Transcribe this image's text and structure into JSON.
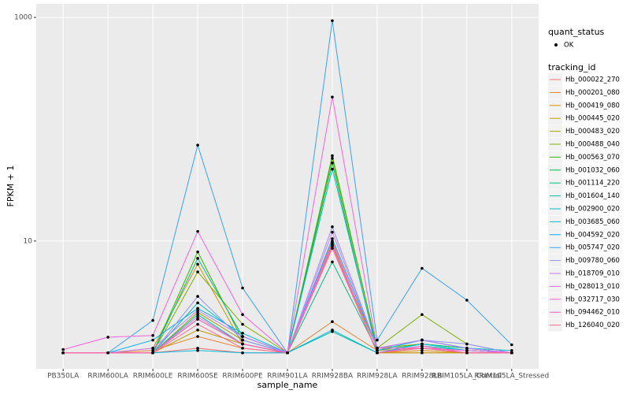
{
  "chart_data": {
    "type": "line",
    "x_label": "sample_name",
    "y_label": "FPKM + 1",
    "yscale": "log",
    "ylim": [
      0.72,
      1320
    ],
    "yticks": [
      10,
      1000
    ],
    "grid": true,
    "categories": [
      "PB350LA",
      "RRIM600LA",
      "RRIM600LE",
      "RRIM600SE",
      "RRIM600PE",
      "RRIM901LA",
      "RRIM928BA",
      "RRIM928LA",
      "RRIM928LB",
      "RRIM105LA_Control",
      "RRIM105LA_Stressed"
    ],
    "point_legend_title": "quant_status",
    "point_legend_label": "OK",
    "legend_title": "tracking_id",
    "series": [
      {
        "name": "Hb_000022_270",
        "color": "#F8766D",
        "values": [
          1,
          1,
          1,
          1.1,
          1,
          1,
          9.5,
          1,
          1,
          1,
          1
        ]
      },
      {
        "name": "Hb_000201_080",
        "color": "#EA8331",
        "values": [
          1,
          1,
          1.05,
          1.4,
          1.1,
          1,
          1.9,
          1.05,
          1.1,
          1.05,
          1
        ]
      },
      {
        "name": "Hb_000419_080",
        "color": "#D89000",
        "values": [
          1,
          1,
          1.1,
          6.2,
          1.2,
          1,
          9,
          1,
          1.05,
          1,
          1
        ]
      },
      {
        "name": "Hb_000445_020",
        "color": "#C09B00",
        "values": [
          1,
          1,
          1,
          1.6,
          1.2,
          1,
          10,
          1,
          1,
          1,
          1
        ]
      },
      {
        "name": "Hb_000483_020",
        "color": "#A3A500",
        "values": [
          1,
          1,
          1,
          2.3,
          1.3,
          1,
          9.2,
          1.1,
          1.2,
          1.1,
          1
        ]
      },
      {
        "name": "Hb_000488_040",
        "color": "#7CAE00",
        "values": [
          1,
          1,
          1,
          5.3,
          1.8,
          1,
          55,
          1.1,
          2.2,
          1.2,
          1
        ]
      },
      {
        "name": "Hb_000563_070",
        "color": "#39B600",
        "values": [
          1,
          1,
          1,
          8,
          1.3,
          1,
          58,
          1.1,
          1.3,
          1.1,
          1
        ]
      },
      {
        "name": "Hb_001032_060",
        "color": "#00BB4E",
        "values": [
          1,
          1,
          1,
          2,
          1.2,
          1,
          50,
          1,
          1.1,
          1,
          1
        ]
      },
      {
        "name": "Hb_001114_220",
        "color": "#00BF7D",
        "values": [
          1,
          1,
          1,
          7,
          1.4,
          1,
          6.5,
          1.05,
          1.2,
          1.1,
          1
        ]
      },
      {
        "name": "Hb_001604_140",
        "color": "#00C1A3",
        "values": [
          1,
          1,
          1,
          2.2,
          1.2,
          1,
          1.55,
          1,
          1.15,
          1.05,
          1
        ]
      },
      {
        "name": "Hb_002900_020",
        "color": "#00BFC4",
        "values": [
          1,
          1,
          1,
          2.8,
          1.4,
          1,
          44,
          1.05,
          1.3,
          1.1,
          1.05
        ]
      },
      {
        "name": "Hb_003685_060",
        "color": "#00BAE0",
        "values": [
          1,
          1,
          1,
          1.05,
          1,
          1,
          1.6,
          1,
          1.2,
          1.05,
          1
        ]
      },
      {
        "name": "Hb_004592_020",
        "color": "#00B0F6",
        "values": [
          1,
          1,
          1.3,
          2.5,
          1.5,
          1,
          10.5,
          1.1,
          1.3,
          1.1,
          1
        ]
      },
      {
        "name": "Hb_005747_020",
        "color": "#35A2FF",
        "values": [
          1,
          1,
          1.95,
          72,
          3.8,
          1,
          935,
          1.3,
          5.7,
          2.96,
          1.18
        ]
      },
      {
        "name": "Hb_009780_060",
        "color": "#9590FF",
        "values": [
          1,
          1,
          1,
          3.2,
          1.3,
          1,
          13.4,
          1.1,
          1.3,
          1.2,
          1
        ]
      },
      {
        "name": "Hb_018709_010",
        "color": "#C77CFF",
        "values": [
          1,
          1,
          1.1,
          2.4,
          1.4,
          1,
          12,
          1.1,
          1.3,
          1.1,
          1
        ]
      },
      {
        "name": "Hb_028013_010",
        "color": "#E76BF3",
        "values": [
          1,
          1,
          1,
          2.1,
          1.2,
          1,
          9.8,
          1,
          1.1,
          1,
          1
        ]
      },
      {
        "name": "Hb_032717_030",
        "color": "#FA62DB",
        "values": [
          1.07,
          1.38,
          1.43,
          12.2,
          2.2,
          1,
          194,
          1.1,
          1.1,
          1.05,
          1
        ]
      },
      {
        "name": "Hb_094462_010",
        "color": "#FF62BC",
        "values": [
          1,
          1,
          1,
          2,
          1.2,
          1,
          9.2,
          1,
          1.15,
          1,
          1
        ]
      },
      {
        "name": "Hb_126040_020",
        "color": "#FF6C91",
        "values": [
          1,
          1,
          1,
          1.8,
          1.1,
          1,
          8.6,
          1,
          1.1,
          1,
          1
        ]
      }
    ]
  }
}
